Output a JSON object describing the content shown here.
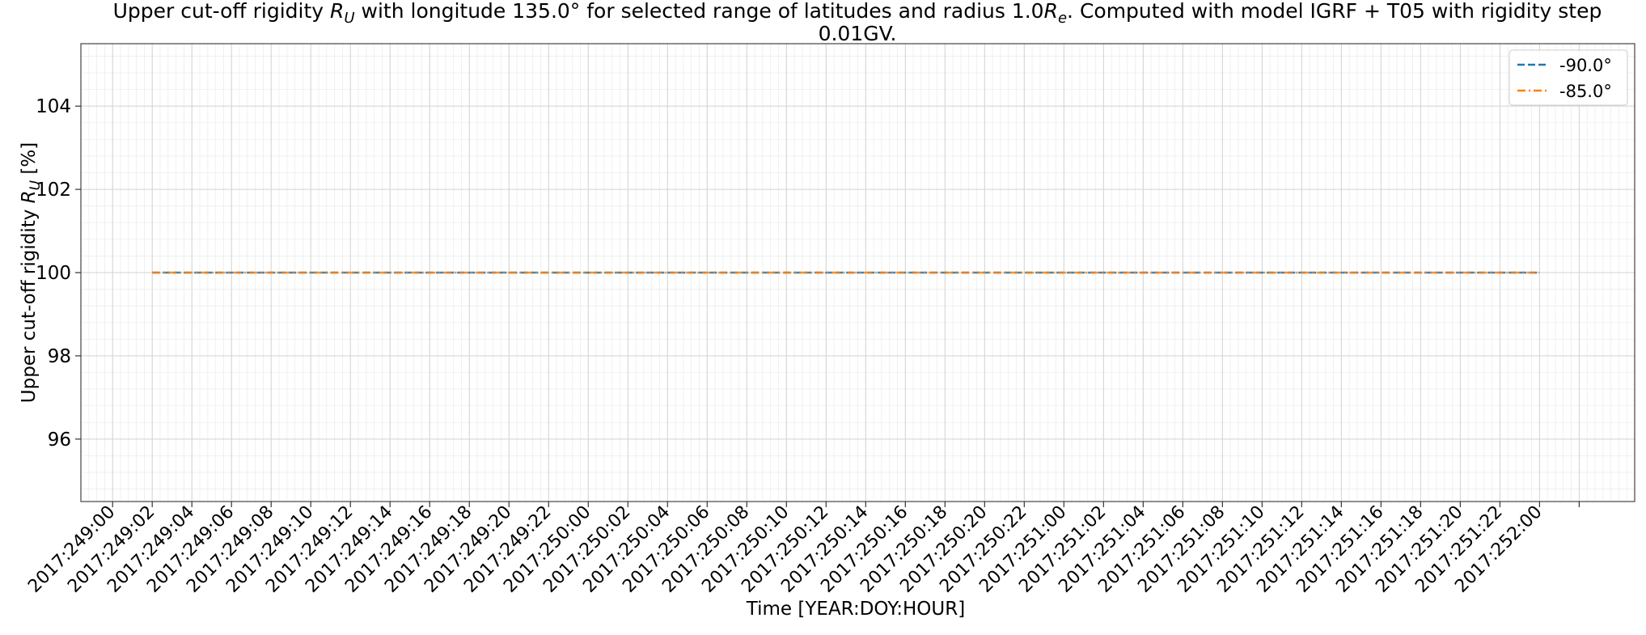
{
  "chart_data": {
    "type": "line",
    "title_line1_prefix": "Upper cut-off rigidity ",
    "title_line1_middle": " with longitude 135.0° for selected range of latitudes and radius 1.0",
    "title_line1_suffix": ". Computed with model IGRF + T05 with rigidity step",
    "title_line2": "0.01GV.",
    "symbol_R": "R",
    "symbol_sub_U": "U",
    "symbol_sub_e": "e",
    "xlabel": "Time [YEAR:DOY:HOUR]",
    "ylabel_prefix": "Upper cut-off rigidity ",
    "ylabel_suffix": " [%]",
    "ylim": [
      94.5,
      105.5
    ],
    "yticks": [
      96,
      98,
      100,
      102,
      104
    ],
    "xlim_hours": [
      -1.6,
      76.8
    ],
    "xticks": [
      "2017:249:00",
      "2017:249:02",
      "2017:249:04",
      "2017:249:06",
      "2017:249:08",
      "2017:249:10",
      "2017:249:12",
      "2017:249:14",
      "2017:249:16",
      "2017:249:18",
      "2017:249:20",
      "2017:249:22",
      "2017:250:00",
      "2017:250:02",
      "2017:250:04",
      "2017:250:06",
      "2017:250:08",
      "2017:250:10",
      "2017:250:12",
      "2017:250:14",
      "2017:250:16",
      "2017:250:18",
      "2017:250:20",
      "2017:250:22",
      "2017:251:00",
      "2017:251:02",
      "2017:251:04",
      "2017:251:06",
      "2017:251:08",
      "2017:251:10",
      "2017:251:12",
      "2017:251:14",
      "2017:251:16",
      "2017:251:18",
      "2017:251:20",
      "2017:251:22",
      "2017:252:00"
    ],
    "x": [
      "2017:249:02",
      "2017:252:00"
    ],
    "series": [
      {
        "name": "-90.0°",
        "color": "#1f77b4",
        "dash": "dashed",
        "values": [
          100,
          100
        ]
      },
      {
        "name": "-85.0°",
        "color": "#ff7f0e",
        "dash": "dashdot",
        "values": [
          100,
          100
        ]
      }
    ],
    "grid": true,
    "minor_grid": true,
    "legend_position": "top-right"
  }
}
